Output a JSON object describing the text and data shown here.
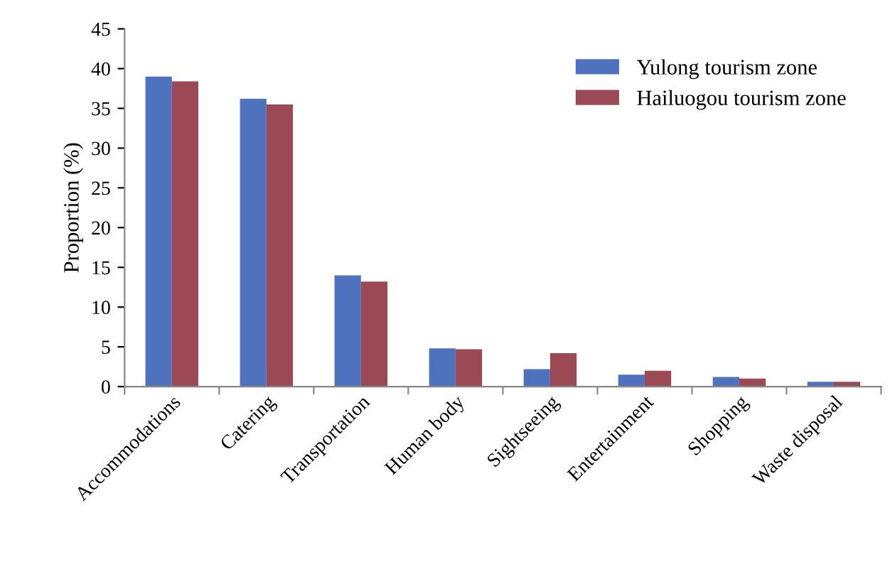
{
  "chart_data": {
    "type": "bar",
    "ylabel": "Proportion (%)",
    "categories": [
      "Accommodations",
      "Catering",
      "Transportation",
      "Human body",
      "Sightseeing",
      "Entertainment",
      "Shopping",
      "Waste disposal"
    ],
    "series": [
      {
        "name": "Yulong tourism zone",
        "color": "#4f72be",
        "values": [
          39,
          36.2,
          14,
          4.8,
          2.2,
          1.5,
          1.2,
          0.6
        ]
      },
      {
        "name": "Hailuogou tourism zone",
        "color": "#9b4a55",
        "values": [
          38.4,
          35.5,
          13.2,
          4.7,
          4.2,
          2.0,
          1.0,
          0.6
        ]
      }
    ],
    "ylim": [
      0,
      45
    ],
    "yticks": [
      0,
      5,
      10,
      15,
      20,
      25,
      30,
      35,
      40,
      45
    ],
    "grid": false,
    "legend": "top right"
  }
}
